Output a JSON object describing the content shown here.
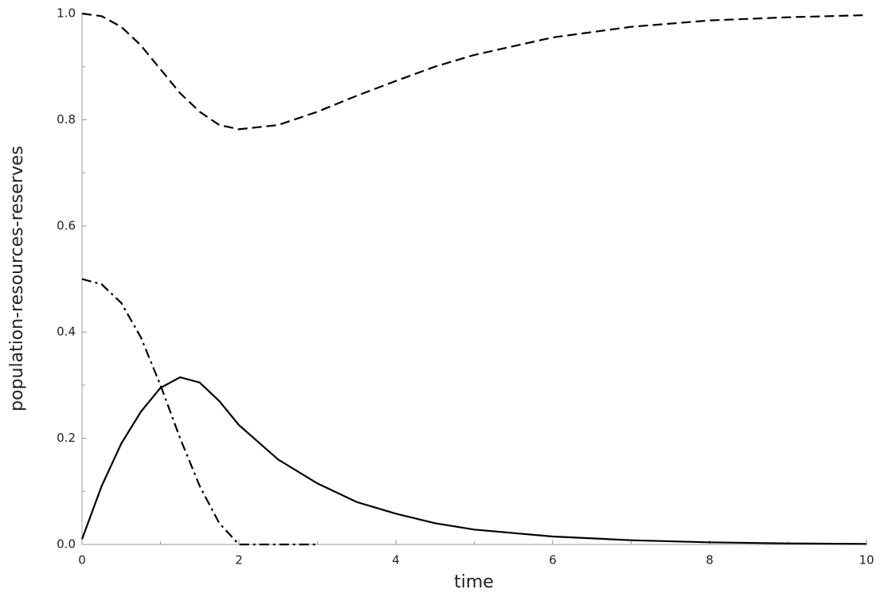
{
  "chart_data": {
    "type": "line",
    "xlabel": "time",
    "ylabel": "population-resources-reserves",
    "x": [
      0,
      0.25,
      0.5,
      0.75,
      1,
      1.25,
      1.5,
      1.75,
      2,
      2.5,
      3,
      3.5,
      4,
      4.5,
      5,
      6,
      7,
      8,
      9,
      10
    ],
    "series": [
      {
        "color": "#000000",
        "dash": "solid",
        "values": [
          0.01,
          0.11,
          0.19,
          0.25,
          0.295,
          0.315,
          0.305,
          0.27,
          0.225,
          0.16,
          0.115,
          0.08,
          0.058,
          0.04,
          0.028,
          0.015,
          0.008,
          0.004,
          0.002,
          0.001
        ]
      },
      {
        "color": "#000000",
        "dash": "dashed",
        "values": [
          1.0,
          0.995,
          0.975,
          0.94,
          0.895,
          0.85,
          0.815,
          0.79,
          0.782,
          0.79,
          0.815,
          0.845,
          0.873,
          0.9,
          0.922,
          0.955,
          0.975,
          0.987,
          0.993,
          0.997
        ]
      },
      {
        "color": "#000000",
        "dash": "dashdot",
        "values": [
          0.5,
          0.49,
          0.455,
          0.39,
          0.3,
          0.2,
          0.11,
          0.04,
          0,
          0,
          0,
          null,
          null,
          null,
          null,
          null,
          null,
          null,
          null,
          null
        ]
      }
    ],
    "xlim": [
      0,
      10
    ],
    "xticks": [
      0,
      2,
      4,
      6,
      8,
      10
    ],
    "ylim": [
      0,
      1
    ],
    "yticks": [
      {
        "value": 0,
        "label": "0.0"
      },
      0.2,
      0.4,
      0.6,
      0.8,
      {
        "value": 1,
        "label": "1.0"
      }
    ]
  }
}
